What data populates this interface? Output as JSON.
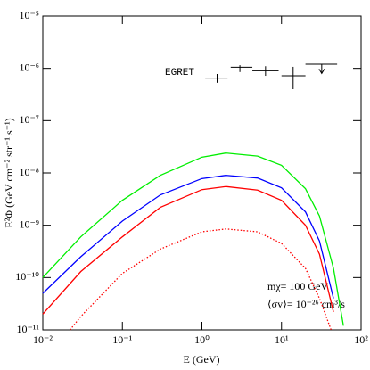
{
  "chart_data": {
    "type": "line",
    "xlabel": "E (GeV)",
    "ylabel": "E²Φ (GeV cm⁻² str⁻¹ s⁻¹)",
    "xscale": "log",
    "yscale": "log",
    "xlim": [
      0.01,
      100
    ],
    "ylim": [
      1e-11,
      1e-05
    ],
    "xticks": [
      {
        "value": 0.01,
        "label": "10⁻²"
      },
      {
        "value": 0.1,
        "label": "10⁻¹"
      },
      {
        "value": 1,
        "label": "10⁰"
      },
      {
        "value": 10,
        "label": "10¹"
      },
      {
        "value": 100,
        "label": "10²"
      }
    ],
    "yticks": [
      {
        "value": 1e-11,
        "label": "10⁻¹¹"
      },
      {
        "value": 1e-10,
        "label": "10⁻¹⁰"
      },
      {
        "value": 1e-09,
        "label": "10⁻⁹"
      },
      {
        "value": 1e-08,
        "label": "10⁻⁸"
      },
      {
        "value": 1e-07,
        "label": "10⁻⁷"
      },
      {
        "value": 1e-06,
        "label": "10⁻⁶"
      },
      {
        "value": 1e-05,
        "label": "10⁻⁵"
      }
    ],
    "annotations": [
      "mχ= 100 GeV",
      "⟨σv⟩= 10⁻²⁶ cm³/s"
    ],
    "series": [
      {
        "color": "#00ee00",
        "style": "solid",
        "x": [
          0.01,
          0.03,
          0.1,
          0.3,
          1,
          2,
          5,
          10,
          20,
          30,
          45,
          60
        ],
        "values": [
          1e-10,
          6e-10,
          3e-09,
          9e-09,
          2e-08,
          2.4e-08,
          2.1e-08,
          1.4e-08,
          5e-09,
          1.5e-09,
          1.5e-10,
          1.2e-11
        ]
      },
      {
        "color": "#0000ff",
        "style": "solid",
        "x": [
          0.01,
          0.03,
          0.1,
          0.3,
          1,
          2,
          5,
          10,
          20,
          30,
          45
        ],
        "values": [
          5e-11,
          2.5e-10,
          1.2e-09,
          3.8e-09,
          7.8e-09,
          9e-09,
          8e-09,
          5.2e-09,
          1.8e-09,
          5e-10,
          4e-11
        ]
      },
      {
        "color": "#ff0000",
        "style": "solid",
        "x": [
          0.01,
          0.03,
          0.1,
          0.3,
          1,
          2,
          5,
          10,
          20,
          30,
          45
        ],
        "values": [
          2e-11,
          1.3e-10,
          6e-10,
          2.2e-09,
          4.8e-09,
          5.5e-09,
          4.7e-09,
          3e-09,
          1e-09,
          2.8e-10,
          2.2e-11
        ]
      },
      {
        "color": "#ff0000",
        "style": "dotted",
        "x": [
          0.022,
          0.03,
          0.1,
          0.3,
          1,
          2,
          5,
          10,
          20,
          30,
          42
        ],
        "values": [
          1e-11,
          1.8e-11,
          1.2e-10,
          3.5e-10,
          7.5e-10,
          8.5e-10,
          7.5e-10,
          4.5e-10,
          1.5e-10,
          4e-11,
          1e-11
        ]
      }
    ],
    "egret": {
      "label": "EGRET",
      "x": [
        1.55,
        3.0,
        6.3,
        14,
        32
      ],
      "x_range": [
        [
          1.1,
          2.1
        ],
        [
          2.3,
          4.3
        ],
        [
          4.3,
          9.2
        ],
        [
          10,
          20
        ],
        [
          20,
          50
        ]
      ],
      "y": [
        6.5e-07,
        1.05e-06,
        9e-07,
        7.2e-07,
        1.2e-06
      ],
      "y_range": [
        [
          5.3e-07,
          7.8e-07
        ],
        [
          8.5e-07,
          1.15e-06
        ],
        [
          7.2e-07,
          1.1e-06
        ],
        [
          4e-07,
          1.07e-06
        ],
        [
          8e-07,
          1.2e-06
        ]
      ],
      "upper_limit": [
        false,
        false,
        false,
        false,
        true
      ]
    }
  }
}
